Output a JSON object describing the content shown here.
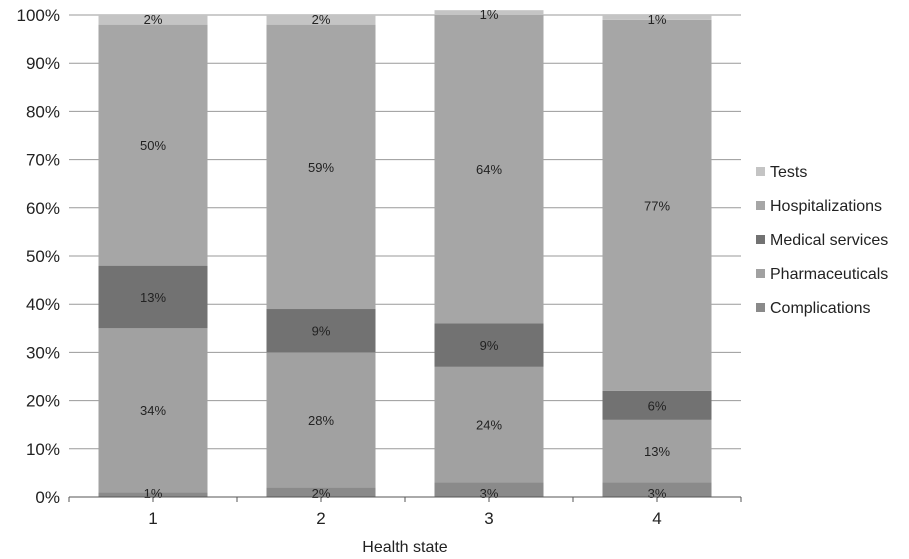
{
  "chart_data": {
    "type": "bar",
    "stacked": true,
    "percent_stacked": true,
    "categories": [
      "1",
      "2",
      "3",
      "4"
    ],
    "xlabel": "Health state",
    "ylabel": "",
    "ylim": [
      0,
      100
    ],
    "yticks": [
      "0%",
      "10%",
      "20%",
      "30%",
      "40%",
      "50%",
      "60%",
      "70%",
      "80%",
      "90%",
      "100%"
    ],
    "grid": "horizontal",
    "legend_position": "right",
    "series": [
      {
        "name": "Complications",
        "values": [
          1,
          2,
          3,
          3
        ],
        "labels": [
          "1%",
          "2%",
          "3%",
          "3%"
        ],
        "color": "#8a8a8a"
      },
      {
        "name": "Pharmaceuticals",
        "values": [
          34,
          28,
          24,
          13
        ],
        "labels": [
          "34%",
          "28%",
          "24%",
          "13%"
        ],
        "color": "#a1a1a1"
      },
      {
        "name": "Medical services",
        "values": [
          13,
          9,
          9,
          6
        ],
        "labels": [
          "13%",
          "9%",
          "9%",
          "6%"
        ],
        "color": "#727272"
      },
      {
        "name": "Hospitalizations",
        "values": [
          50,
          59,
          64,
          77
        ],
        "labels": [
          "50%",
          "59%",
          "64%",
          "77%"
        ],
        "color": "#a6a6a6"
      },
      {
        "name": "Tests",
        "values": [
          2,
          2,
          1,
          1
        ],
        "labels": [
          "2%",
          "2%",
          "1%",
          "1%"
        ],
        "color": "#c4c4c4"
      }
    ],
    "legend_order": [
      "Tests",
      "Hospitalizations",
      "Medical services",
      "Pharmaceuticals",
      "Complications"
    ]
  }
}
